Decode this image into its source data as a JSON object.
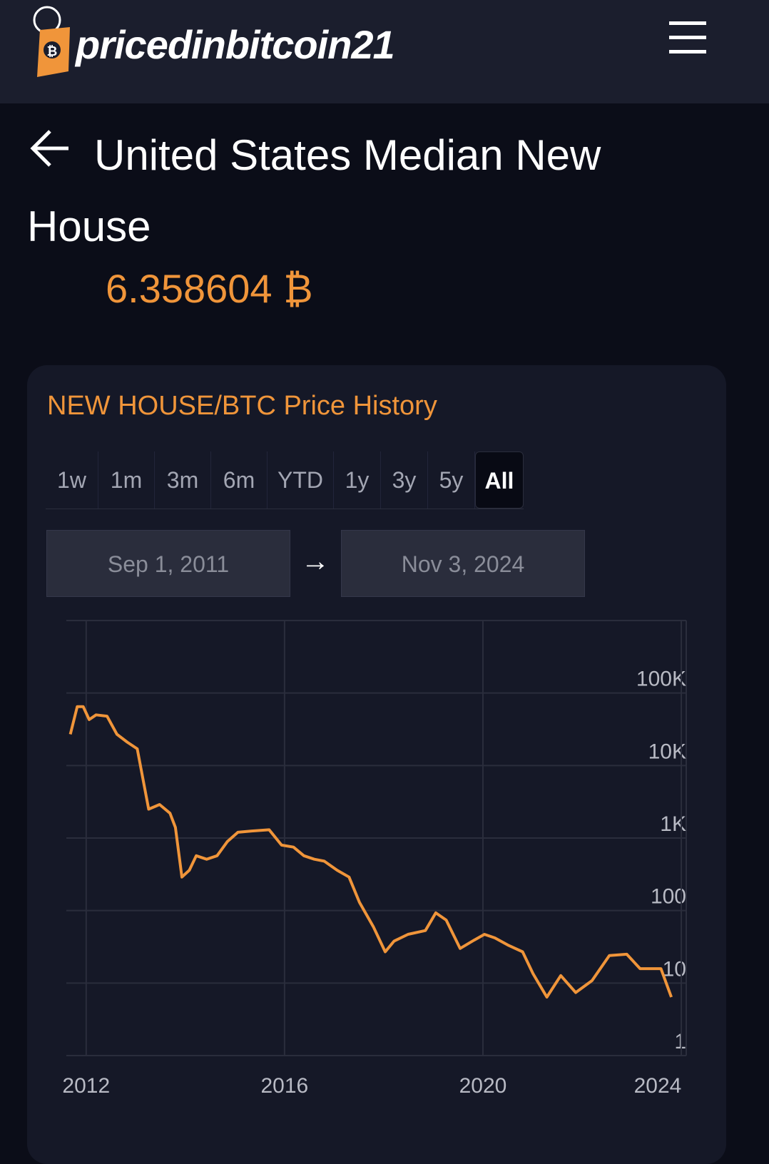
{
  "header": {
    "brand": "pricedinbitcoin21",
    "logo_symbol": "₿"
  },
  "title": "United States Median New House",
  "price": "6.358604 ₿",
  "card": {
    "title": "NEW HOUSE/BTC Price History",
    "ranges": [
      "1w",
      "1m",
      "3m",
      "6m",
      "YTD",
      "1y",
      "3y",
      "5y",
      "All"
    ],
    "active": "All",
    "start_date": "Sep 1, 2011",
    "arrow": "→",
    "end_date": "Nov 3, 2024"
  },
  "chart_data": {
    "type": "line",
    "color": "#f0953a",
    "log_y": true,
    "grid": true,
    "x": [
      2011.68,
      2011.82,
      2011.94,
      2012.06,
      2012.2,
      2012.42,
      2012.62,
      2012.83,
      2013.03,
      2013.26,
      2013.48,
      2013.69,
      2013.8,
      2013.93,
      2014.08,
      2014.22,
      2014.43,
      2014.64,
      2014.85,
      2015.06,
      2015.34,
      2015.69,
      2015.94,
      2016.18,
      2016.39,
      2016.6,
      2016.8,
      2017.06,
      2017.3,
      2017.51,
      2017.79,
      2018.03,
      2018.21,
      2018.49,
      2018.84,
      2019.05,
      2019.26,
      2019.54,
      2019.82,
      2020.03,
      2020.24,
      2020.52,
      2020.8,
      2021.01,
      2021.29,
      2021.57,
      2021.87,
      2022.2,
      2022.55,
      2022.9,
      2023.17,
      2023.59,
      2023.8
    ],
    "values": [
      27000,
      65000,
      65000,
      43000,
      50000,
      48000,
      27000,
      21000,
      17000,
      2500,
      2900,
      2200,
      1400,
      290,
      360,
      570,
      510,
      570,
      900,
      1200,
      1250,
      1300,
      800,
      750,
      570,
      510,
      480,
      360,
      290,
      130,
      60,
      27,
      38,
      47,
      53,
      93,
      74,
      30,
      39,
      47,
      42,
      33,
      27,
      13.5,
      6.4,
      12.7,
      7.4,
      10.8,
      24,
      25,
      15.8,
      15.8,
      6.4
    ],
    "xlim": [
      2011.6,
      2024.1
    ],
    "xticks": [
      2012,
      2016,
      2020,
      2024
    ],
    "ylim": [
      1,
      1000000
    ],
    "yticks": [
      1,
      10,
      100,
      {
        "value": 1000,
        "label": "1K"
      },
      {
        "value": 10000,
        "label": "10K"
      },
      {
        "value": 100000,
        "label": "100K"
      }
    ]
  }
}
